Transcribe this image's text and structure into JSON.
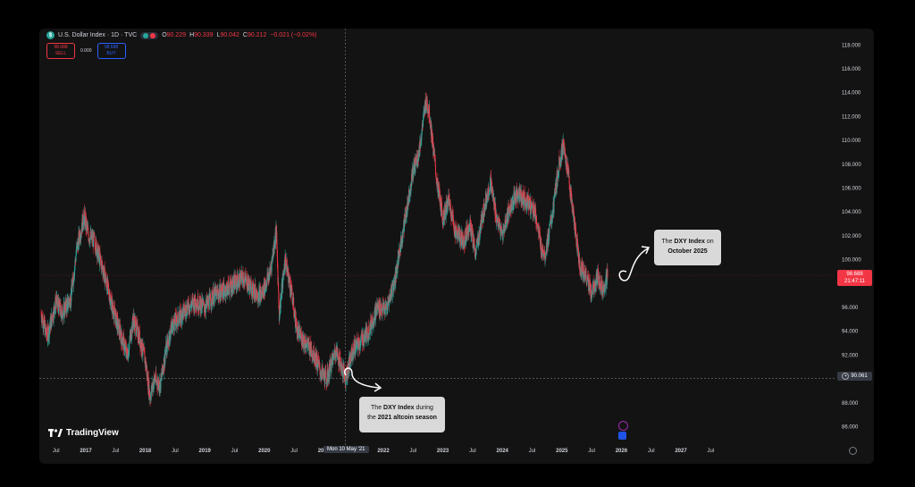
{
  "header": {
    "title": "U.S. Dollar Index · 1D · TVC",
    "ohlc": [
      {
        "label": "O",
        "value": "90.229"
      },
      {
        "label": "H",
        "value": "90.339"
      },
      {
        "label": "L",
        "value": "90.042"
      },
      {
        "label": "C",
        "value": "90.212"
      }
    ],
    "change": "−0.021 (−0.02%)"
  },
  "trade": {
    "sell_price": "98.688",
    "sell_label": "SELL",
    "spread": "0.000",
    "buy_price": "98.688",
    "buy_label": "BUY"
  },
  "price_badges": {
    "last_price": "98.688",
    "countdown": "21:47:11",
    "crosshair_price": "90.061"
  },
  "crosshair_time": "Mon 10 May '21",
  "brand": "TradingView",
  "annotations": {
    "a2021_line1_pre": "The ",
    "a2021_line1_bold": "DXY Index",
    "a2021_line1_post": " during",
    "a2021_line2_pre": "the ",
    "a2021_line2_bold": "2021 altcoin season",
    "oct_line1_pre": "The ",
    "oct_line1_bold": "DXY Index",
    "oct_line1_post": " on",
    "oct_line2_bold": "October 2025"
  },
  "colors": {
    "up": "#26a69a",
    "down": "#f23645",
    "background": "#131313",
    "text": "#d1d4dc"
  },
  "chart_data": {
    "type": "candlestick",
    "y_ticks": [
      86,
      88,
      90,
      92,
      94,
      96,
      98,
      100,
      102,
      104,
      106,
      108,
      110,
      112,
      114,
      116,
      118
    ],
    "y_tick_labels": [
      "86.000",
      "88.000",
      "90.000",
      "92.000",
      "94.000",
      "96.000",
      "98.000",
      "100.000",
      "102.000",
      "104.000",
      "106.000",
      "108.000",
      "110.000",
      "112.000",
      "114.000",
      "116.000",
      "118.000"
    ],
    "ylim": [
      84.5,
      119.2
    ],
    "x_ticks": [
      {
        "t": 2016.5,
        "label": "Jul",
        "bold": false
      },
      {
        "t": 2017.0,
        "label": "2017",
        "bold": true
      },
      {
        "t": 2017.5,
        "label": "Jul",
        "bold": false
      },
      {
        "t": 2018.0,
        "label": "2018",
        "bold": true
      },
      {
        "t": 2018.5,
        "label": "Jul",
        "bold": false
      },
      {
        "t": 2019.0,
        "label": "2019",
        "bold": true
      },
      {
        "t": 2019.5,
        "label": "Jul",
        "bold": false
      },
      {
        "t": 2020.0,
        "label": "2020",
        "bold": true
      },
      {
        "t": 2020.5,
        "label": "Jul",
        "bold": false
      },
      {
        "t": 2021.0,
        "label": "2021",
        "bold": true
      },
      {
        "t": 2022.0,
        "label": "2022",
        "bold": true
      },
      {
        "t": 2022.5,
        "label": "Jul",
        "bold": false
      },
      {
        "t": 2023.0,
        "label": "2023",
        "bold": true
      },
      {
        "t": 2023.5,
        "label": "Jul",
        "bold": false
      },
      {
        "t": 2024.0,
        "label": "2024",
        "bold": true
      },
      {
        "t": 2024.5,
        "label": "Jul",
        "bold": false
      },
      {
        "t": 2025.0,
        "label": "2025",
        "bold": true
      },
      {
        "t": 2025.5,
        "label": "Jul",
        "bold": false
      },
      {
        "t": 2026.0,
        "label": "2026",
        "bold": true
      },
      {
        "t": 2026.5,
        "label": "Jul",
        "bold": false
      },
      {
        "t": 2027.0,
        "label": "2027",
        "bold": true
      },
      {
        "t": 2027.5,
        "label": "Jul",
        "bold": false
      }
    ],
    "path_points": [
      [
        2016.25,
        95.5
      ],
      [
        2016.35,
        93.5
      ],
      [
        2016.5,
        96.5
      ],
      [
        2016.6,
        95.5
      ],
      [
        2016.75,
        96.8
      ],
      [
        2016.85,
        101.0
      ],
      [
        2016.97,
        103.6
      ],
      [
        2017.05,
        102.0
      ],
      [
        2017.15,
        101.5
      ],
      [
        2017.3,
        99.0
      ],
      [
        2017.45,
        96.0
      ],
      [
        2017.6,
        93.5
      ],
      [
        2017.7,
        92.0
      ],
      [
        2017.8,
        95.0
      ],
      [
        2017.9,
        93.5
      ],
      [
        2018.0,
        91.5
      ],
      [
        2018.08,
        88.5
      ],
      [
        2018.15,
        90.0
      ],
      [
        2018.25,
        89.5
      ],
      [
        2018.35,
        92.5
      ],
      [
        2018.45,
        94.5
      ],
      [
        2018.55,
        95.0
      ],
      [
        2018.7,
        96.0
      ],
      [
        2018.85,
        96.5
      ],
      [
        2019.0,
        96.0
      ],
      [
        2019.15,
        97.0
      ],
      [
        2019.35,
        97.5
      ],
      [
        2019.5,
        98.0
      ],
      [
        2019.65,
        98.5
      ],
      [
        2019.8,
        97.5
      ],
      [
        2019.95,
        97.0
      ],
      [
        2020.1,
        99.0
      ],
      [
        2020.2,
        102.5
      ],
      [
        2020.25,
        95.5
      ],
      [
        2020.35,
        100.0
      ],
      [
        2020.45,
        97.5
      ],
      [
        2020.55,
        94.0
      ],
      [
        2020.7,
        93.0
      ],
      [
        2020.85,
        92.0
      ],
      [
        2020.95,
        90.5
      ],
      [
        2021.05,
        90.0
      ],
      [
        2021.2,
        92.5
      ],
      [
        2021.36,
        90.1
      ],
      [
        2021.5,
        92.5
      ],
      [
        2021.6,
        93.0
      ],
      [
        2021.75,
        94.0
      ],
      [
        2021.9,
        96.0
      ],
      [
        2022.05,
        95.8
      ],
      [
        2022.2,
        98.5
      ],
      [
        2022.35,
        103.0
      ],
      [
        2022.5,
        107.5
      ],
      [
        2022.6,
        109.0
      ],
      [
        2022.72,
        113.5
      ],
      [
        2022.78,
        112.0
      ],
      [
        2022.9,
        106.5
      ],
      [
        2023.0,
        103.5
      ],
      [
        2023.1,
        105.0
      ],
      [
        2023.2,
        102.5
      ],
      [
        2023.35,
        101.5
      ],
      [
        2023.45,
        103.0
      ],
      [
        2023.55,
        100.5
      ],
      [
        2023.7,
        104.5
      ],
      [
        2023.8,
        106.5
      ],
      [
        2023.9,
        103.5
      ],
      [
        2024.0,
        102.0
      ],
      [
        2024.1,
        104.0
      ],
      [
        2024.25,
        105.5
      ],
      [
        2024.4,
        105.0
      ],
      [
        2024.55,
        104.0
      ],
      [
        2024.65,
        101.0
      ],
      [
        2024.72,
        100.5
      ],
      [
        2024.85,
        104.0
      ],
      [
        2024.95,
        108.0
      ],
      [
        2025.02,
        109.5
      ],
      [
        2025.1,
        107.5
      ],
      [
        2025.2,
        103.5
      ],
      [
        2025.3,
        99.5
      ],
      [
        2025.42,
        98.5
      ],
      [
        2025.5,
        97.0
      ],
      [
        2025.6,
        98.5
      ],
      [
        2025.7,
        97.5
      ],
      [
        2025.77,
        98.7
      ]
    ]
  }
}
